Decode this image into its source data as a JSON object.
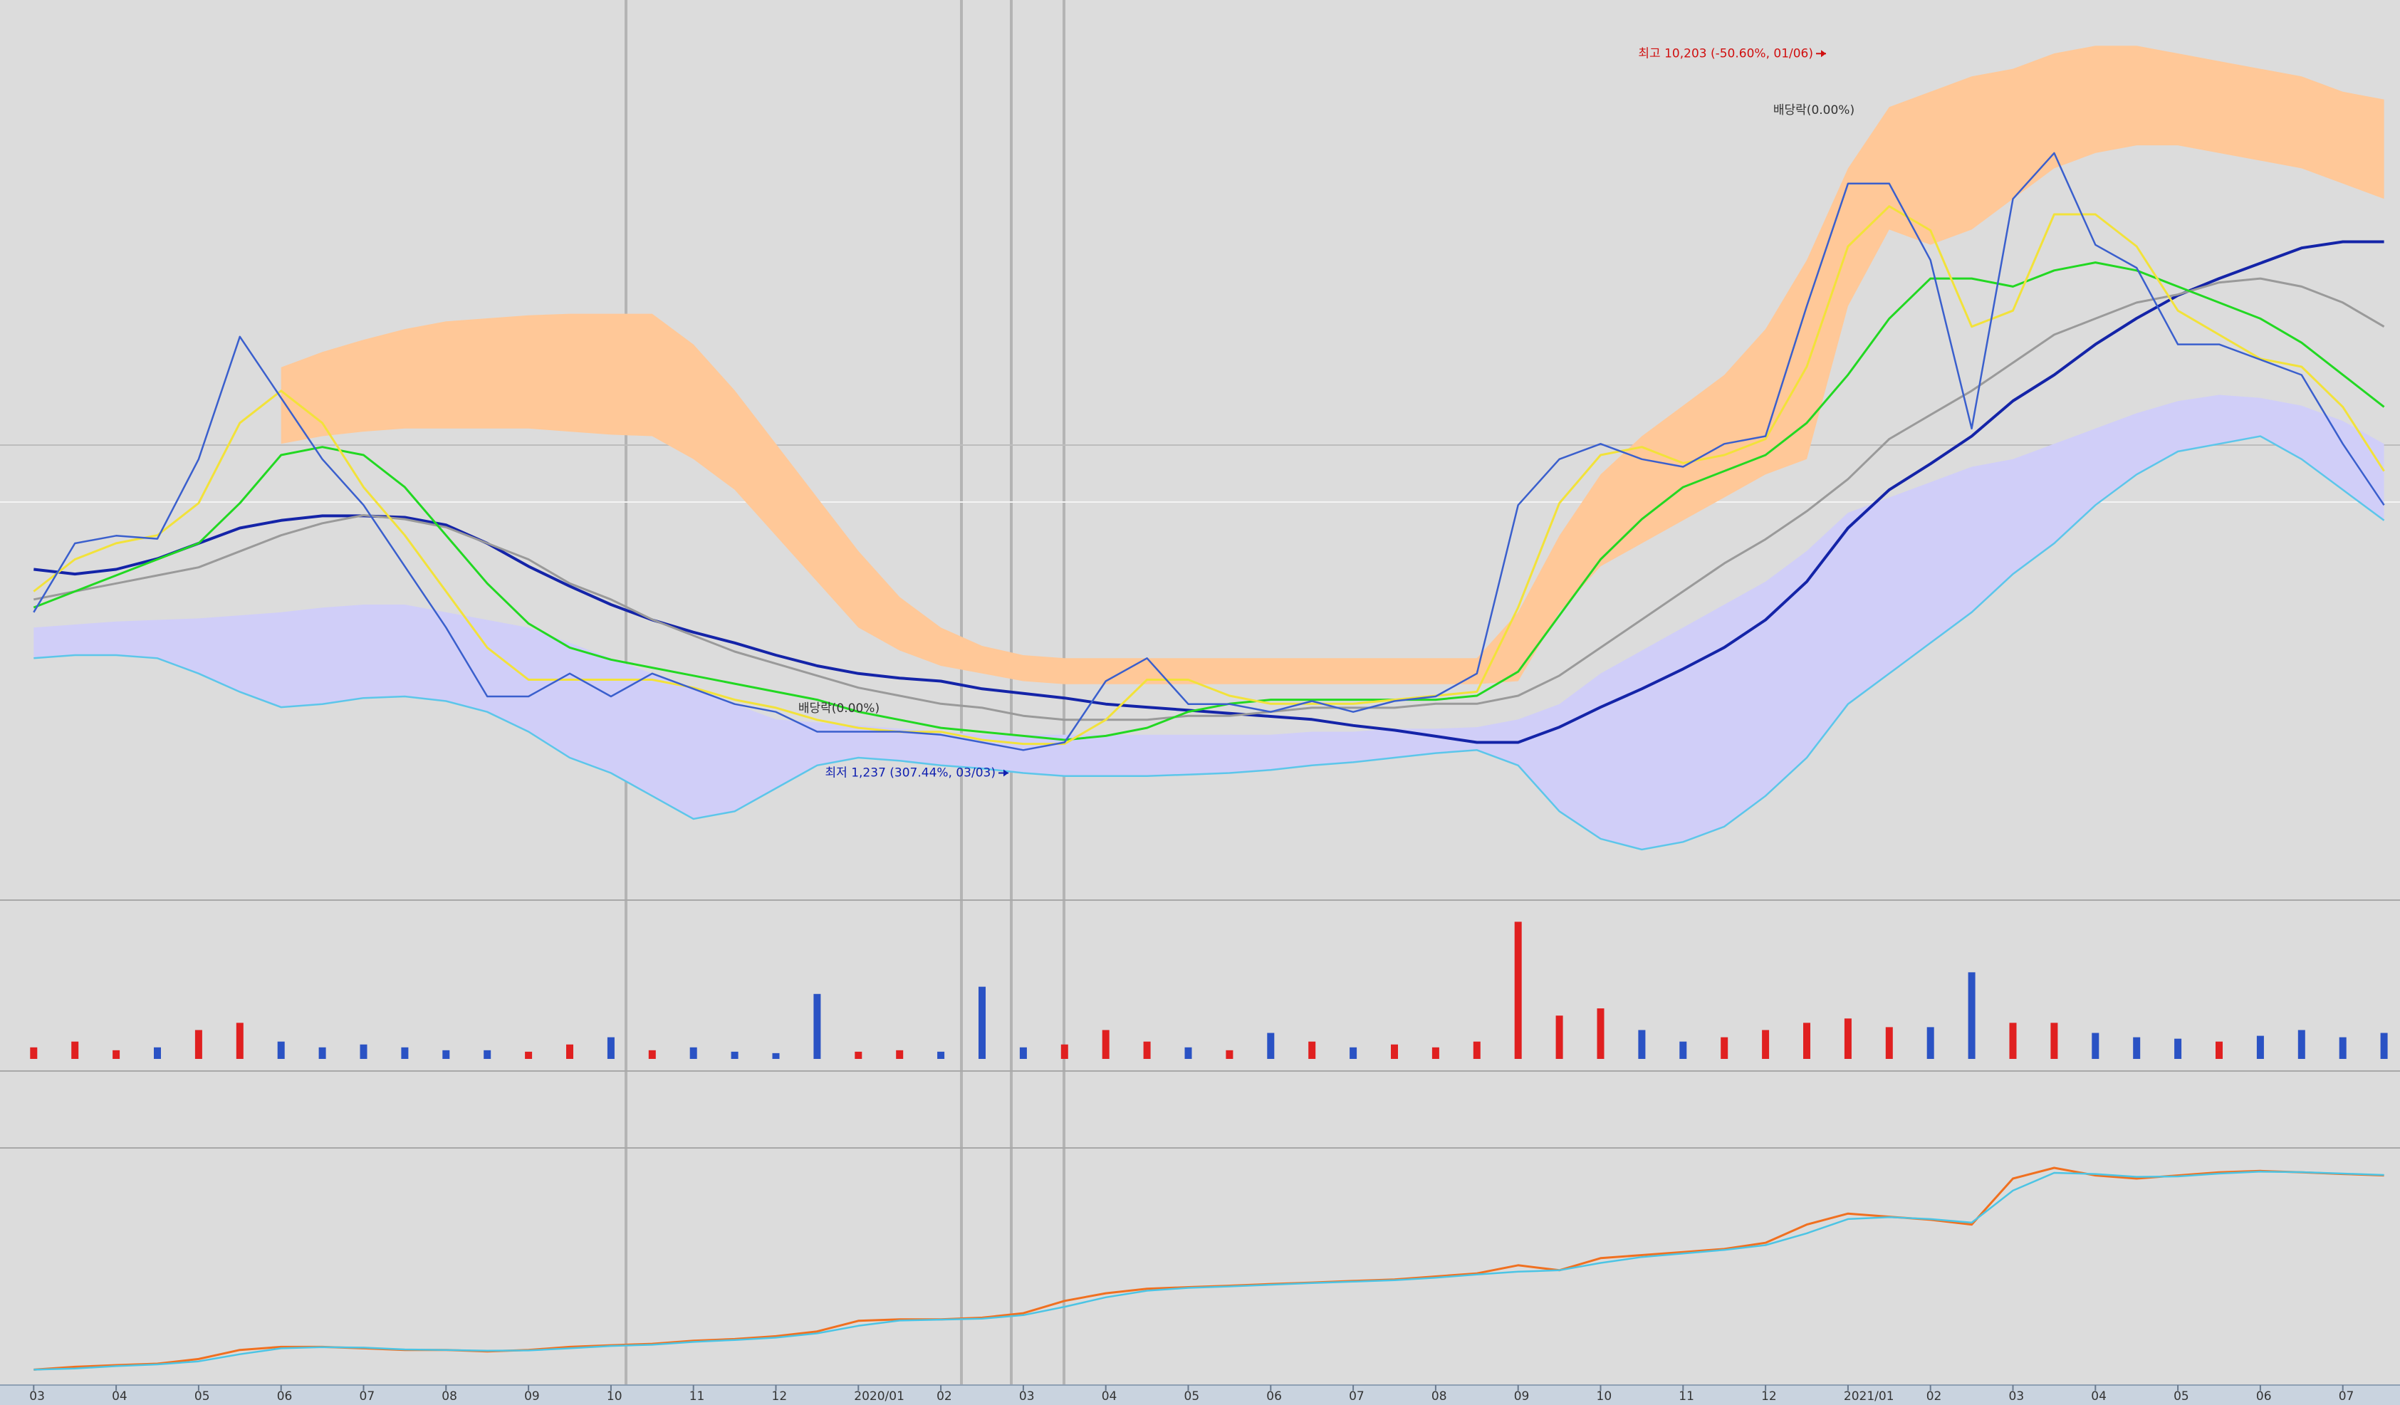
{
  "chart_data": [
    {
      "type": "line",
      "ylim": [
        -347,
        10871
      ],
      "series": [
        {
          "color": "#3a5fcd",
          "values": [
            3240,
            4099,
            4194,
            4156,
            5148,
            6675,
            5912,
            5148,
            4576,
            3813,
            3050,
            2191,
            2191,
            2477,
            2191,
            2477,
            2286,
            2096,
            1999,
            1752,
            1752,
            1752,
            1714,
            1619,
            1523,
            1619,
            2382,
            2668,
            2096,
            2096,
            1999,
            2134,
            1999,
            2134,
            2191,
            2477,
            4576,
            5148,
            5339,
            5148,
            5053,
            5339,
            5435,
            7056,
            8583,
            8583,
            7629,
            5530,
            8392,
            8964,
            7820,
            7533,
            6579,
            6579,
            6389,
            6198,
            5339,
            4576
          ]
        },
        {
          "color": "#f2e23a",
          "values": [
            3500,
            3900,
            4100,
            4200,
            4600,
            5600,
            6000,
            5600,
            4800,
            4200,
            3500,
            2800,
            2400,
            2400,
            2400,
            2400,
            2300,
            2150,
            2050,
            1900,
            1800,
            1750,
            1750,
            1650,
            1600,
            1600,
            1900,
            2400,
            2400,
            2200,
            2100,
            2100,
            2100,
            2150,
            2200,
            2250,
            3300,
            4600,
            5200,
            5300,
            5100,
            5200,
            5400,
            6300,
            7800,
            8300,
            8000,
            6800,
            7000,
            8200,
            8200,
            7800,
            7000,
            6700,
            6400,
            6300,
            5800,
            5000
          ]
        },
        {
          "color": "#22d822",
          "values": [
            3300,
            3500,
            3700,
            3900,
            4100,
            4600,
            5200,
            5300,
            5200,
            4800,
            4200,
            3600,
            3100,
            2800,
            2650,
            2550,
            2450,
            2350,
            2250,
            2150,
            2000,
            1900,
            1800,
            1750,
            1700,
            1650,
            1700,
            1800,
            2000,
            2100,
            2150,
            2150,
            2150,
            2150,
            2150,
            2200,
            2500,
            3200,
            3900,
            4400,
            4800,
            5000,
            5200,
            5600,
            6200,
            6900,
            7400,
            7400,
            7300,
            7500,
            7600,
            7500,
            7300,
            7100,
            6900,
            6600,
            6200,
            5800
          ]
        },
        {
          "color": "#9a9a9a",
          "values": [
            3400,
            3500,
            3600,
            3700,
            3800,
            4000,
            4200,
            4350,
            4450,
            4400,
            4300,
            4100,
            3900,
            3600,
            3400,
            3150,
            2950,
            2750,
            2600,
            2450,
            2300,
            2200,
            2100,
            2050,
            1950,
            1900,
            1900,
            1900,
            1950,
            1950,
            2000,
            2050,
            2050,
            2050,
            2100,
            2100,
            2200,
            2450,
            2800,
            3150,
            3500,
            3850,
            4150,
            4500,
            4900,
            5400,
            5700,
            6000,
            6350,
            6700,
            6900,
            7100,
            7200,
            7350,
            7400,
            7300,
            7100,
            6800
          ]
        },
        {
          "color": "#1424a8",
          "values": [
            3775,
            3717,
            3775,
            3908,
            4099,
            4290,
            4385,
            4442,
            4442,
            4423,
            4328,
            4099,
            3813,
            3565,
            3336,
            3145,
            2992,
            2859,
            2706,
            2573,
            2477,
            2420,
            2382,
            2286,
            2229,
            2172,
            2096,
            2057,
            2019,
            1981,
            1943,
            1905,
            1829,
            1771,
            1695,
            1619,
            1619,
            1809,
            2057,
            2286,
            2534,
            2802,
            3145,
            3622,
            4290,
            4767,
            5091,
            5435,
            5874,
            6198,
            6579,
            6904,
            7190,
            7400,
            7591,
            7781,
            7858,
            7858
          ]
        }
      ],
      "bands": [
        {
          "color": "#ffc898",
          "upper": [
            null,
            null,
            null,
            null,
            null,
            null,
            6293,
            6484,
            6637,
            6770,
            6866,
            6904,
            6942,
            6961,
            6961,
            6961,
            6579,
            6007,
            5339,
            4671,
            4004,
            3431,
            3050,
            2821,
            2706,
            2668,
            2668,
            2668,
            2668,
            2668,
            2668,
            2668,
            2668,
            2668,
            2668,
            2668,
            3240,
            4194,
            4958,
            5435,
            5816,
            6198,
            6770,
            7629,
            8773,
            9537,
            9728,
            9919,
            10014,
            10205,
            10300,
            10300,
            10205,
            10109,
            10014,
            9919,
            9728,
            9632
          ],
          "lower": [
            null,
            null,
            null,
            null,
            null,
            null,
            5339,
            5435,
            5492,
            5530,
            5530,
            5530,
            5530,
            5492,
            5454,
            5435,
            5148,
            4767,
            4194,
            3622,
            3050,
            2764,
            2573,
            2477,
            2382,
            2344,
            2344,
            2344,
            2344,
            2344,
            2344,
            2344,
            2344,
            2344,
            2344,
            2344,
            2382,
            3240,
            3813,
            4099,
            4385,
            4671,
            4958,
            5148,
            7056,
            8010,
            7820,
            8010,
            8392,
            8773,
            8964,
            9060,
            9060,
            8964,
            8869,
            8773,
            8583,
            8392
          ]
        },
        {
          "color": "#d0cef8",
          "edge": "#5cc6ea",
          "upper": [
            3050,
            3088,
            3126,
            3145,
            3164,
            3202,
            3240,
            3298,
            3336,
            3336,
            3240,
            3145,
            3050,
            2859,
            2668,
            2477,
            2286,
            2096,
            1905,
            1867,
            1829,
            1790,
            1752,
            1714,
            1714,
            1714,
            1714,
            1714,
            1714,
            1714,
            1714,
            1752,
            1752,
            1790,
            1790,
            1809,
            1905,
            2096,
            2477,
            2764,
            3050,
            3336,
            3622,
            4004,
            4481,
            4671,
            4862,
            5053,
            5148,
            5339,
            5530,
            5721,
            5873,
            5950,
            5912,
            5816,
            5625,
            5339
          ],
          "lower": [
            2668,
            2706,
            2706,
            2668,
            2477,
            2248,
            2057,
            2096,
            2172,
            2191,
            2134,
            1999,
            1752,
            1428,
            1237,
            951,
            665,
            760,
            1046,
            1332,
            1428,
            1390,
            1332,
            1294,
            1237,
            1199,
            1199,
            1199,
            1218,
            1237,
            1275,
            1332,
            1371,
            1428,
            1485,
            1523,
            1332,
            760,
            417,
            283,
            378,
            569,
            951,
            1428,
            2096,
            2477,
            2859,
            3240,
            3717,
            4099,
            4576,
            4958,
            5244,
            5339,
            5435,
            5148,
            4767,
            4385
          ]
        }
      ],
      "annotations": [
        {
          "text": "최고 10,203 (-50.60%, 01/06)",
          "value": 10203,
          "color": "#d01010"
        },
        {
          "text": "최저 1,237 (307.44%, 03/03)",
          "value": 1237,
          "color": "#1020b0"
        },
        {
          "text": "배당락(0.00%)"
        },
        {
          "text": "배당락(0.00%)"
        }
      ]
    },
    {
      "type": "bar",
      "ylim": [
        0,
        110
      ],
      "up_color": "#e02020",
      "down_color": "#2a52c4",
      "values": [
        8,
        12,
        6,
        8,
        20,
        25,
        12,
        8,
        10,
        8,
        6,
        6,
        5,
        10,
        15,
        6,
        8,
        5,
        4,
        45,
        5,
        6,
        5,
        50,
        8,
        10,
        20,
        12,
        8,
        6,
        18,
        12,
        8,
        10,
        8,
        12,
        95,
        30,
        35,
        20,
        12,
        15,
        20,
        25,
        28,
        22,
        22,
        60,
        25,
        25,
        18,
        15,
        14,
        12,
        16,
        20,
        15,
        18
      ]
    },
    {
      "type": "line",
      "ylim": [
        0,
        100
      ],
      "categories": [
        "03",
        null,
        "04",
        null,
        "05",
        null,
        "06",
        null,
        "07",
        null,
        "08",
        null,
        "09",
        null,
        "10",
        null,
        "11",
        null,
        "12",
        null,
        "2020/01",
        null,
        "02",
        null,
        "03",
        null,
        "04",
        null,
        "05",
        null,
        "06",
        null,
        "07",
        null,
        "08",
        null,
        "09",
        null,
        "10",
        null,
        "11",
        null,
        "12",
        null,
        "2021/01",
        null,
        "02",
        null,
        "03",
        null,
        "04",
        null,
        "05",
        null,
        "06",
        null,
        "07",
        null
      ],
      "series": [
        {
          "color": "#4cc4e4",
          "values": [
            6.5,
            7.0,
            8.0,
            8.7,
            10.0,
            13.0,
            15.5,
            16.0,
            15.8,
            15.0,
            14.8,
            14.5,
            14.6,
            15.5,
            16.5,
            17.0,
            18.2,
            19.0,
            20.0,
            21.8,
            25.0,
            27.2,
            27.6,
            28.0,
            29.5,
            33.0,
            37.0,
            39.8,
            41.0,
            41.6,
            42.3,
            43.0,
            43.6,
            44.2,
            45.3,
            46.6,
            47.8,
            48.4,
            51.5,
            54.0,
            55.5,
            57.0,
            59.0,
            64.0,
            70.0,
            70.8,
            70.0,
            68.5,
            82.0,
            89.5,
            89.0,
            87.8,
            88.0,
            89.2,
            90.0,
            89.8,
            89.2,
            88.6
          ]
        },
        {
          "color": "#f07020",
          "values": [
            6.5,
            7.7,
            8.4,
            9.0,
            11.0,
            14.8,
            16.1,
            16.1,
            15.5,
            14.8,
            14.8,
            14.2,
            14.8,
            16.1,
            16.8,
            17.4,
            18.7,
            19.4,
            20.6,
            22.6,
            27.1,
            27.7,
            27.7,
            28.4,
            30.3,
            35.5,
            38.7,
            40.6,
            41.3,
            41.9,
            42.6,
            43.2,
            43.9,
            44.5,
            45.8,
            47.1,
            50.5,
            48.4,
            53.5,
            54.8,
            56.1,
            57.4,
            60.0,
            67.7,
            72.3,
            71.0,
            69.7,
            67.7,
            87.1,
            91.6,
            88.4,
            87.1,
            88.4,
            89.7,
            90.3,
            89.7,
            89.0,
            88.4
          ]
        }
      ]
    }
  ]
}
